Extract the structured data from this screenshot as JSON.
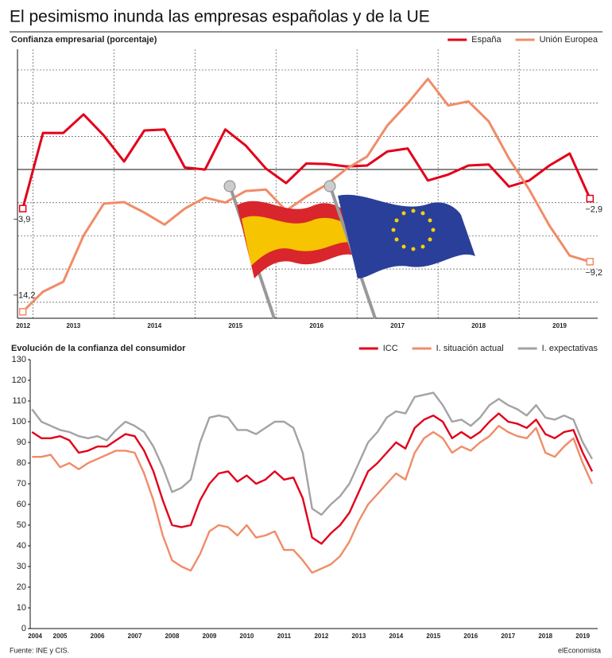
{
  "title": "El pesimismo inunda las empresas españolas y de la UE",
  "source": "Fuente: INE y CIS.",
  "credit": "elEconomista",
  "chart_data": [
    {
      "type": "line",
      "title": "Confianza empresarial (porcentaje)",
      "grid": true,
      "x": [
        2012.875,
        2013.125,
        2013.375,
        2013.625,
        2013.875,
        2014.125,
        2014.375,
        2014.625,
        2014.875,
        2015.125,
        2015.375,
        2015.625,
        2015.875,
        2016.125,
        2016.375,
        2016.625,
        2016.875,
        2017.125,
        2017.375,
        2017.625,
        2017.875,
        2018.125,
        2018.375,
        2018.625,
        2018.875,
        2019.125,
        2019.375,
        2019.625,
        2019.875
      ],
      "xlim": [
        2012.81,
        2019.97
      ],
      "xticks": [
        {
          "value": 2012.88,
          "label": "2012"
        },
        {
          "value": 2013.5,
          "label": "2013"
        },
        {
          "value": 2014.5,
          "label": "2014"
        },
        {
          "value": 2015.5,
          "label": "2015"
        },
        {
          "value": 2016.5,
          "label": "2016"
        },
        {
          "value": 2017.5,
          "label": "2017"
        },
        {
          "value": 2018.5,
          "label": "2018"
        },
        {
          "value": 2019.5,
          "label": "2019"
        }
      ],
      "ylim": [
        -14.85,
        12
      ],
      "series": [
        {
          "name": "España",
          "color": "#e2001a",
          "values": [
            -3.9,
            3.65,
            3.65,
            5.5,
            3.4,
            0.8,
            3.9,
            4.0,
            0.2,
            0.0,
            4.0,
            2.4,
            0.1,
            -1.35,
            0.6,
            0.55,
            0.3,
            0.4,
            1.8,
            2.1,
            -1.1,
            -0.5,
            0.4,
            0.5,
            -1.7,
            -1.1,
            0.4,
            1.6,
            -2.9
          ],
          "value_labels": [
            "−3,9",
            null,
            null,
            null,
            null,
            null,
            null,
            null,
            null,
            null,
            null,
            null,
            null,
            null,
            null,
            null,
            null,
            null,
            null,
            null,
            null,
            null,
            null,
            null,
            null,
            null,
            null,
            null,
            "−2,9"
          ]
        },
        {
          "name": "Unión Europea",
          "color": "#f08c68",
          "values": [
            -14.2,
            -12.2,
            -11.2,
            -6.6,
            -3.4,
            -3.25,
            -4.3,
            -5.5,
            -3.9,
            -2.8,
            -3.3,
            -2.15,
            -2.0,
            -4.1,
            -2.7,
            -1.5,
            0.1,
            1.3,
            4.4,
            6.6,
            9.05,
            6.4,
            6.8,
            4.8,
            1.1,
            -2.0,
            -5.6,
            -8.6,
            -9.2
          ],
          "value_labels": [
            "−14,2",
            null,
            null,
            null,
            null,
            null,
            null,
            null,
            null,
            null,
            null,
            null,
            null,
            null,
            null,
            null,
            null,
            null,
            null,
            null,
            null,
            null,
            null,
            null,
            null,
            null,
            null,
            null,
            "−9,2"
          ]
        }
      ]
    },
    {
      "type": "line",
      "title": "Evolución de la confianza del consumidor",
      "grid": false,
      "x": [
        2004.75,
        2005,
        2005.25,
        2005.5,
        2005.75,
        2006,
        2006.25,
        2006.5,
        2006.75,
        2007,
        2007.25,
        2007.5,
        2007.75,
        2008,
        2008.25,
        2008.5,
        2008.75,
        2009,
        2009.25,
        2009.5,
        2009.75,
        2010,
        2010.25,
        2010.5,
        2010.75,
        2011,
        2011.25,
        2011.5,
        2011.75,
        2012,
        2012.25,
        2012.5,
        2012.75,
        2013,
        2013.25,
        2013.5,
        2013.75,
        2014,
        2014.25,
        2014.5,
        2014.75,
        2015,
        2015.25,
        2015.5,
        2015.75,
        2016,
        2016.25,
        2016.5,
        2016.75,
        2017,
        2017.25,
        2017.5,
        2017.75,
        2018,
        2018.25,
        2018.5,
        2018.75,
        2019,
        2019.25,
        2019.5,
        2019.75
      ],
      "xlim": [
        2004.7,
        2019.9
      ],
      "xticks": [
        {
          "value": 2004.83,
          "label": "2004"
        },
        {
          "value": 2005.5,
          "label": "2005"
        },
        {
          "value": 2006.5,
          "label": "2006"
        },
        {
          "value": 2007.5,
          "label": "2007"
        },
        {
          "value": 2008.5,
          "label": "2008"
        },
        {
          "value": 2009.5,
          "label": "2009"
        },
        {
          "value": 2010.5,
          "label": "2010"
        },
        {
          "value": 2011.5,
          "label": "2011"
        },
        {
          "value": 2012.5,
          "label": "2012"
        },
        {
          "value": 2013.5,
          "label": "2013"
        },
        {
          "value": 2014.5,
          "label": "2014"
        },
        {
          "value": 2015.5,
          "label": "2015"
        },
        {
          "value": 2016.5,
          "label": "2016"
        },
        {
          "value": 2017.5,
          "label": "2017"
        },
        {
          "value": 2018.5,
          "label": "2018"
        },
        {
          "value": 2019.5,
          "label": "2019"
        }
      ],
      "ylim": [
        0,
        130
      ],
      "yticks": [
        0,
        10,
        20,
        30,
        40,
        50,
        60,
        70,
        80,
        90,
        100,
        110,
        120,
        130
      ],
      "series": [
        {
          "name": "ICC",
          "color": "#e2001a",
          "values": [
            95,
            92,
            92,
            93,
            91,
            85,
            86,
            88,
            88,
            91,
            94,
            93,
            86,
            76,
            62,
            50,
            49,
            50,
            62,
            70,
            75,
            76,
            71,
            74,
            70,
            72,
            76,
            72,
            73,
            63,
            44,
            41,
            46,
            50,
            56,
            66,
            76,
            80,
            85,
            90,
            87,
            97,
            101,
            103,
            100,
            92,
            95,
            92,
            95,
            100,
            104,
            100,
            99,
            97,
            101,
            94,
            92,
            95,
            96,
            85,
            76
          ]
        },
        {
          "name": "I. situación actual",
          "color": "#f08c68",
          "values": [
            83,
            83,
            84,
            78,
            80,
            77,
            80,
            82,
            84,
            86,
            86,
            85,
            75,
            62,
            45,
            33,
            30,
            28,
            36,
            47,
            50,
            49,
            45,
            50,
            44,
            45,
            47,
            38,
            38,
            33,
            27,
            29,
            31,
            35,
            42,
            52,
            60,
            65,
            70,
            75,
            72,
            85,
            92,
            95,
            92,
            85,
            88,
            86,
            90,
            93,
            98,
            95,
            93,
            92,
            97,
            85,
            83,
            88,
            92,
            80,
            70
          ]
        },
        {
          "name": "I. expectativas",
          "color": "#a3a3a3",
          "values": [
            106,
            100,
            98,
            96,
            95,
            93,
            92,
            93,
            91,
            96,
            100,
            98,
            95,
            88,
            78,
            66,
            68,
            72,
            90,
            102,
            103,
            102,
            96,
            96,
            94,
            97,
            100,
            100,
            97,
            85,
            58,
            55,
            60,
            64,
            70,
            80,
            90,
            95,
            102,
            105,
            104,
            112,
            113,
            114,
            108,
            100,
            101,
            98,
            102,
            108,
            111,
            108,
            106,
            103,
            108,
            102,
            101,
            103,
            101,
            90,
            82
          ]
        }
      ]
    }
  ]
}
